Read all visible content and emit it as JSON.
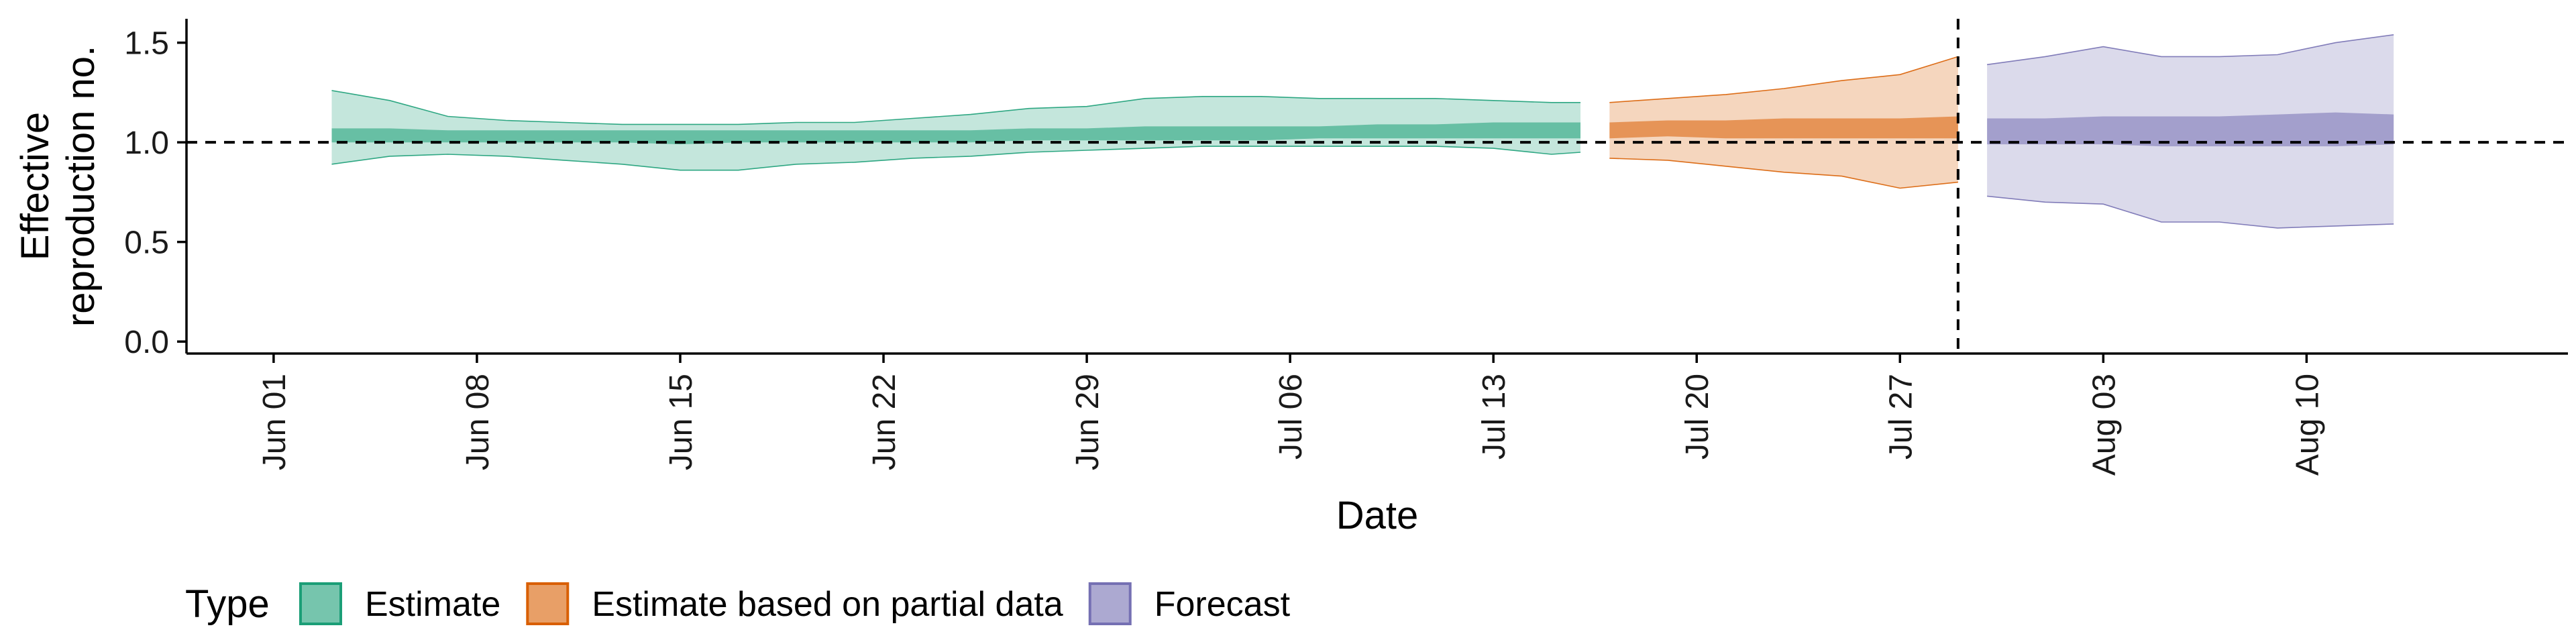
{
  "chart_data": {
    "type": "area",
    "xlabel": "Date",
    "ylabel_lines": [
      "Effective",
      "reproduction no."
    ],
    "ylim": [
      -0.06,
      1.62
    ],
    "yticks": [
      0.0,
      0.5,
      1.0,
      1.5
    ],
    "ytick_labels": [
      "0.0",
      "0.5",
      "1.0",
      "1.5"
    ],
    "xlim": [
      "2020-05-29",
      "2020-08-19"
    ],
    "xticks": [
      "2020-06-01",
      "2020-06-08",
      "2020-06-15",
      "2020-06-22",
      "2020-06-29",
      "2020-07-06",
      "2020-07-13",
      "2020-07-20",
      "2020-07-27",
      "2020-08-03",
      "2020-08-10"
    ],
    "xtick_labels": [
      "Jun 01",
      "Jun 08",
      "Jun 15",
      "Jun 22",
      "Jun 29",
      "Jul 06",
      "Jul 13",
      "Jul 20",
      "Jul 27",
      "Aug 03",
      "Aug 10"
    ],
    "hline_y": 1.0,
    "vline_x": "2020-07-29",
    "grid": false,
    "legend_position": "bottom",
    "legend_title": "Type",
    "colors": {
      "Estimate": {
        "fill": "#1b9e77",
        "line": "#1b9e77"
      },
      "Estimate based on partial data": {
        "fill": "#d95f02",
        "line": "#d95f02"
      },
      "Forecast": {
        "fill": "#7570b3",
        "line": "#7570b3"
      }
    },
    "series": [
      {
        "name": "Estimate",
        "x": [
          "2020-06-03",
          "2020-06-05",
          "2020-06-07",
          "2020-06-09",
          "2020-06-11",
          "2020-06-13",
          "2020-06-15",
          "2020-06-17",
          "2020-06-19",
          "2020-06-21",
          "2020-06-23",
          "2020-06-25",
          "2020-06-27",
          "2020-06-29",
          "2020-07-01",
          "2020-07-03",
          "2020-07-05",
          "2020-07-07",
          "2020-07-09",
          "2020-07-11",
          "2020-07-13",
          "2020-07-15",
          "2020-07-16"
        ],
        "upper90": [
          1.26,
          1.21,
          1.13,
          1.11,
          1.1,
          1.09,
          1.09,
          1.09,
          1.1,
          1.1,
          1.12,
          1.14,
          1.17,
          1.18,
          1.22,
          1.23,
          1.23,
          1.22,
          1.22,
          1.22,
          1.21,
          1.2,
          1.2
        ],
        "lower90": [
          0.89,
          0.93,
          0.94,
          0.93,
          0.91,
          0.89,
          0.86,
          0.86,
          0.89,
          0.9,
          0.92,
          0.93,
          0.95,
          0.96,
          0.97,
          0.98,
          0.98,
          0.98,
          0.98,
          0.98,
          0.97,
          0.94,
          0.95
        ],
        "upper50": [
          1.07,
          1.07,
          1.06,
          1.06,
          1.06,
          1.06,
          1.06,
          1.06,
          1.06,
          1.06,
          1.06,
          1.06,
          1.07,
          1.07,
          1.08,
          1.08,
          1.08,
          1.08,
          1.09,
          1.09,
          1.1,
          1.1,
          1.1
        ],
        "lower50": [
          1.0,
          1.0,
          1.0,
          1.0,
          1.0,
          1.0,
          0.99,
          1.0,
          1.0,
          1.0,
          1.0,
          1.0,
          1.01,
          1.01,
          1.01,
          1.01,
          1.01,
          1.02,
          1.02,
          1.02,
          1.02,
          1.02,
          1.02
        ]
      },
      {
        "name": "Estimate based on partial data",
        "x": [
          "2020-07-17",
          "2020-07-19",
          "2020-07-21",
          "2020-07-23",
          "2020-07-25",
          "2020-07-27",
          "2020-07-29"
        ],
        "upper90": [
          1.2,
          1.22,
          1.24,
          1.27,
          1.31,
          1.34,
          1.43
        ],
        "lower90": [
          0.92,
          0.91,
          0.88,
          0.85,
          0.83,
          0.77,
          0.8
        ],
        "upper50": [
          1.1,
          1.11,
          1.11,
          1.12,
          1.12,
          1.12,
          1.13
        ],
        "lower50": [
          1.02,
          1.03,
          1.02,
          1.02,
          1.02,
          1.02,
          1.02
        ]
      },
      {
        "name": "Forecast",
        "x": [
          "2020-07-30",
          "2020-08-01",
          "2020-08-03",
          "2020-08-05",
          "2020-08-07",
          "2020-08-09",
          "2020-08-11",
          "2020-08-13"
        ],
        "upper90": [
          1.39,
          1.43,
          1.48,
          1.43,
          1.43,
          1.44,
          1.5,
          1.54
        ],
        "lower90": [
          0.73,
          0.7,
          0.69,
          0.6,
          0.6,
          0.57,
          0.58,
          0.59
        ],
        "upper50": [
          1.12,
          1.12,
          1.13,
          1.13,
          1.13,
          1.14,
          1.15,
          1.14
        ],
        "lower50": [
          0.99,
          0.99,
          0.99,
          0.98,
          0.98,
          0.98,
          0.98,
          0.99
        ]
      }
    ]
  }
}
